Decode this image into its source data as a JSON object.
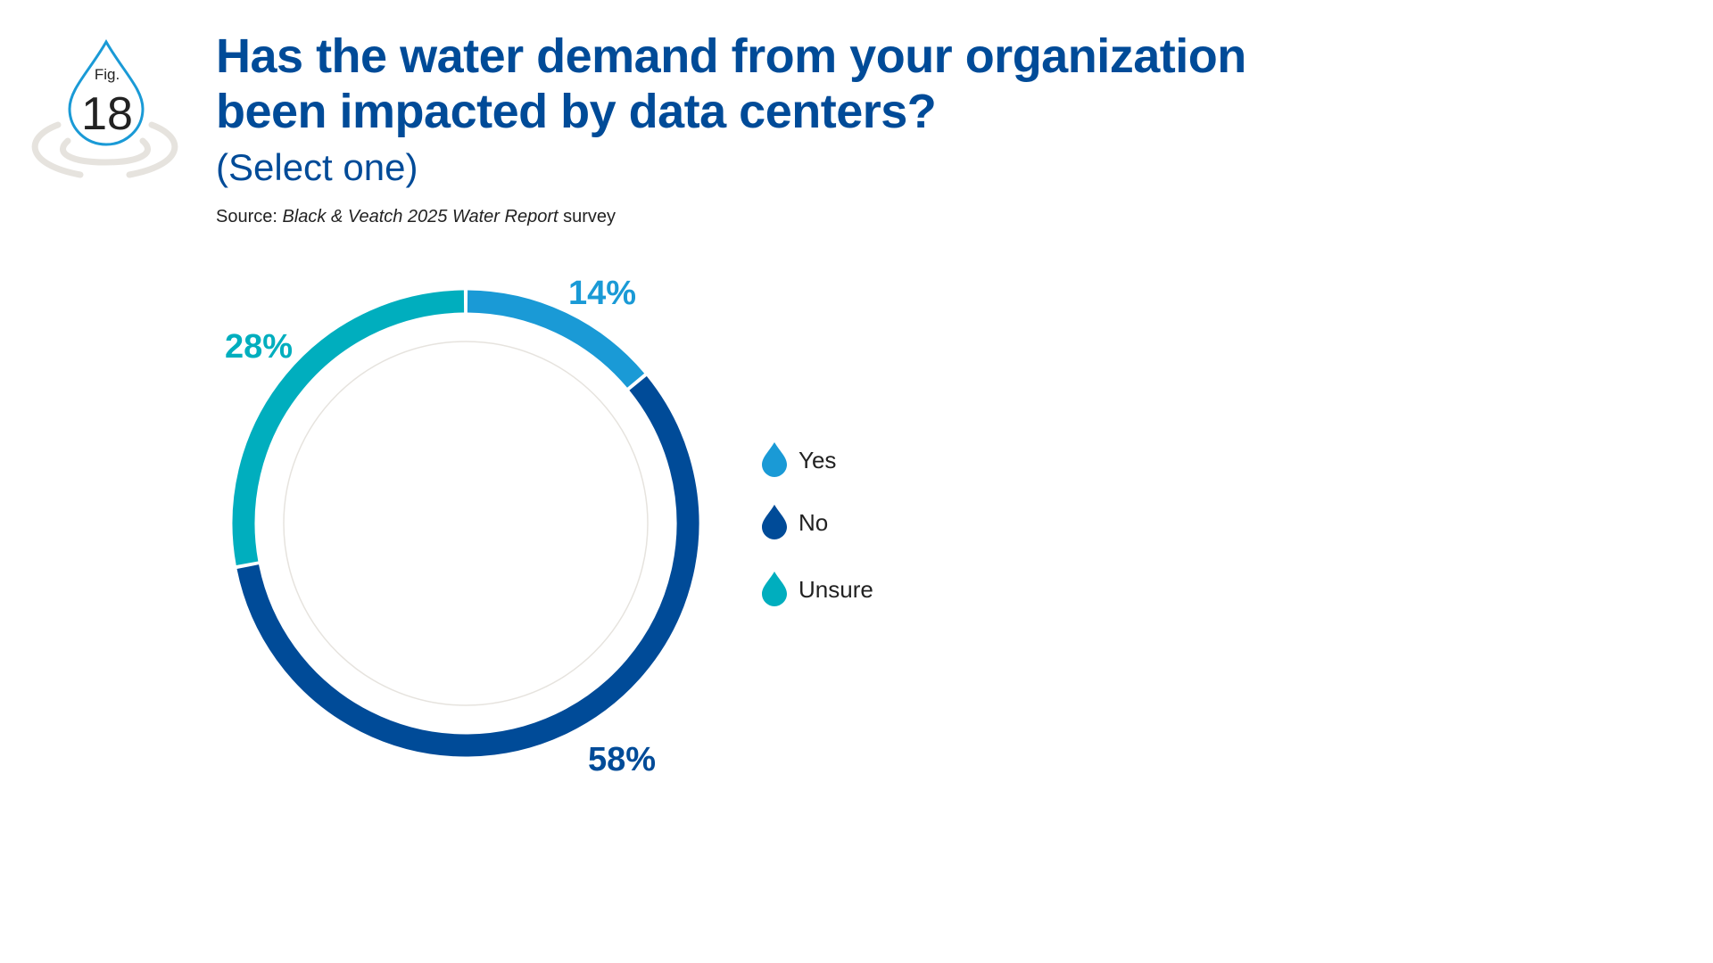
{
  "figure_badge": {
    "label": "Fig.",
    "number": "18",
    "icon": "water-drop-icon"
  },
  "header": {
    "title_line1": "Has the water demand from your organization",
    "title_line2": "been impacted by data centers?",
    "subtitle": "(Select one)",
    "source_prefix": "Source: ",
    "source_italic": "Black & Veatch 2025 Water Report",
    "source_suffix": " survey"
  },
  "chart_data": {
    "type": "pie",
    "style": "donut",
    "title": "Has the water demand from your organization been impacted by data centers?",
    "subtitle": "(Select one)",
    "categories": [
      "Yes",
      "No",
      "Unsure"
    ],
    "values": [
      14,
      58,
      28
    ],
    "labels": [
      "14%",
      "58%",
      "28%"
    ],
    "colors": [
      "#1a9ad6",
      "#004b98",
      "#00aebe"
    ],
    "legend_placement": "right",
    "legend_icon": "water-drop-icon"
  }
}
